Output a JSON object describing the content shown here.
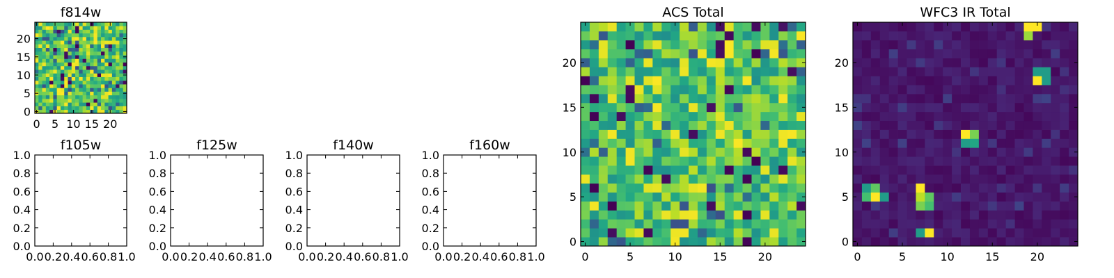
{
  "chart_data": [
    {
      "type": "heatmap",
      "title": "f814w",
      "xlabel": "",
      "ylabel": "",
      "xlim": [
        -0.5,
        24.5
      ],
      "ylim": [
        -0.5,
        24.5
      ],
      "x_ticks": [
        "0",
        "5",
        "10",
        "15",
        "20"
      ],
      "y_ticks": [
        "0",
        "5",
        "10",
        "15",
        "20"
      ],
      "grid_size": [
        25,
        25
      ],
      "colormap": "viridis",
      "style": "noise-high",
      "seed": 3
    },
    {
      "type": "heatmap",
      "title": "f105w",
      "xlim": [
        0.0,
        1.0
      ],
      "ylim": [
        0.0,
        1.0
      ],
      "x_ticks": [
        "0.0",
        "0.2",
        "0.4",
        "0.6",
        "0.8",
        "1.0"
      ],
      "y_ticks": [
        "0.0",
        "0.2",
        "0.4",
        "0.6",
        "0.8",
        "1.0"
      ],
      "empty": true
    },
    {
      "type": "heatmap",
      "title": "f125w",
      "xlim": [
        0.0,
        1.0
      ],
      "ylim": [
        0.0,
        1.0
      ],
      "x_ticks": [
        "0.0",
        "0.2",
        "0.4",
        "0.6",
        "0.8",
        "1.0"
      ],
      "y_ticks": [
        "0.0",
        "0.2",
        "0.4",
        "0.6",
        "0.8",
        "1.0"
      ],
      "empty": true
    },
    {
      "type": "heatmap",
      "title": "f140w",
      "xlim": [
        0.0,
        1.0
      ],
      "ylim": [
        0.0,
        1.0
      ],
      "x_ticks": [
        "0.0",
        "0.2",
        "0.4",
        "0.6",
        "0.8",
        "1.0"
      ],
      "y_ticks": [
        "0.0",
        "0.2",
        "0.4",
        "0.6",
        "0.8",
        "1.0"
      ],
      "empty": true
    },
    {
      "type": "heatmap",
      "title": "f160w",
      "xlim": [
        0.0,
        1.0
      ],
      "ylim": [
        0.0,
        1.0
      ],
      "x_ticks": [
        "0.0",
        "0.2",
        "0.4",
        "0.6",
        "0.8",
        "1.0"
      ],
      "y_ticks": [
        "0.0",
        "0.2",
        "0.4",
        "0.6",
        "0.8",
        "1.0"
      ],
      "empty": true
    },
    {
      "type": "heatmap",
      "title": "ACS Total",
      "xlim": [
        -0.5,
        24.5
      ],
      "ylim": [
        -0.5,
        24.5
      ],
      "x_ticks": [
        "0",
        "5",
        "10",
        "15",
        "20"
      ],
      "y_ticks": [
        "0",
        "5",
        "10",
        "15",
        "20"
      ],
      "grid_size": [
        25,
        25
      ],
      "colormap": "viridis",
      "style": "noise-high",
      "seed": 11
    },
    {
      "type": "heatmap",
      "title": "WFC3 IR Total",
      "xlim": [
        -0.5,
        24.5
      ],
      "ylim": [
        -0.5,
        24.5
      ],
      "x_ticks": [
        "0",
        "5",
        "10",
        "15",
        "20"
      ],
      "y_ticks": [
        "0",
        "5",
        "10",
        "15",
        "20"
      ],
      "grid_size": [
        25,
        25
      ],
      "colormap": "viridis",
      "style": "background-with-sources",
      "seed": 7,
      "sources": [
        {
          "x": 19,
          "y": 24,
          "level": 1.0
        },
        {
          "x": 20,
          "y": 24,
          "level": 1.0
        },
        {
          "x": 19,
          "y": 23,
          "level": 0.85
        },
        {
          "x": 20,
          "y": 19,
          "level": 0.55
        },
        {
          "x": 21,
          "y": 19,
          "level": 0.55
        },
        {
          "x": 20,
          "y": 18,
          "level": 1.0
        },
        {
          "x": 21,
          "y": 18,
          "level": 0.55
        },
        {
          "x": 12,
          "y": 12,
          "level": 1.0
        },
        {
          "x": 13,
          "y": 12,
          "level": 0.8
        },
        {
          "x": 12,
          "y": 11,
          "level": 0.55
        },
        {
          "x": 13,
          "y": 11,
          "level": 0.6
        },
        {
          "x": 1,
          "y": 6,
          "level": 0.55
        },
        {
          "x": 2,
          "y": 6,
          "level": 0.75
        },
        {
          "x": 1,
          "y": 5,
          "level": 0.7
        },
        {
          "x": 2,
          "y": 5,
          "level": 1.0
        },
        {
          "x": 3,
          "y": 5,
          "level": 0.55
        },
        {
          "x": 7,
          "y": 6,
          "level": 1.0
        },
        {
          "x": 7,
          "y": 5,
          "level": 0.9
        },
        {
          "x": 8,
          "y": 5,
          "level": 0.75
        },
        {
          "x": 7,
          "y": 4,
          "level": 0.8
        },
        {
          "x": 8,
          "y": 4,
          "level": 0.7
        },
        {
          "x": 7,
          "y": 1,
          "level": 0.55
        },
        {
          "x": 8,
          "y": 1,
          "level": 1.0
        }
      ]
    }
  ]
}
